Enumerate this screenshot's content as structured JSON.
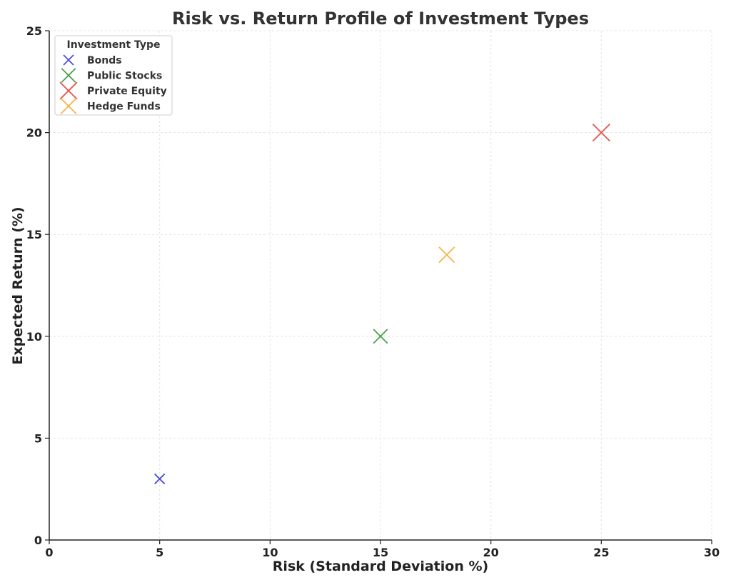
{
  "chart_data": {
    "type": "scatter",
    "title": "Risk vs. Return Profile of Investment Types",
    "xlabel": "Risk (Standard Deviation %)",
    "ylabel": "Expected Return (%)",
    "xlim": [
      0,
      30
    ],
    "ylim": [
      0,
      25
    ],
    "xticks": [
      0,
      5,
      10,
      15,
      20,
      25,
      30
    ],
    "yticks": [
      0,
      5,
      10,
      15,
      20,
      25
    ],
    "grid": true,
    "legend": {
      "title": "Investment Type",
      "placement": "top-left"
    },
    "marker": "x",
    "series": [
      {
        "name": "Bonds",
        "color": "#4d4dd9",
        "x": 5,
        "y": 3,
        "marker_scale": 1.0
      },
      {
        "name": "Public Stocks",
        "color": "#4aa04a",
        "x": 15,
        "y": 10,
        "marker_scale": 1.4
      },
      {
        "name": "Private Equity",
        "color": "#e8504a",
        "x": 25,
        "y": 20,
        "marker_scale": 1.7
      },
      {
        "name": "Hedge Funds",
        "color": "#f6b54a",
        "x": 18,
        "y": 14,
        "marker_scale": 1.55
      }
    ]
  }
}
